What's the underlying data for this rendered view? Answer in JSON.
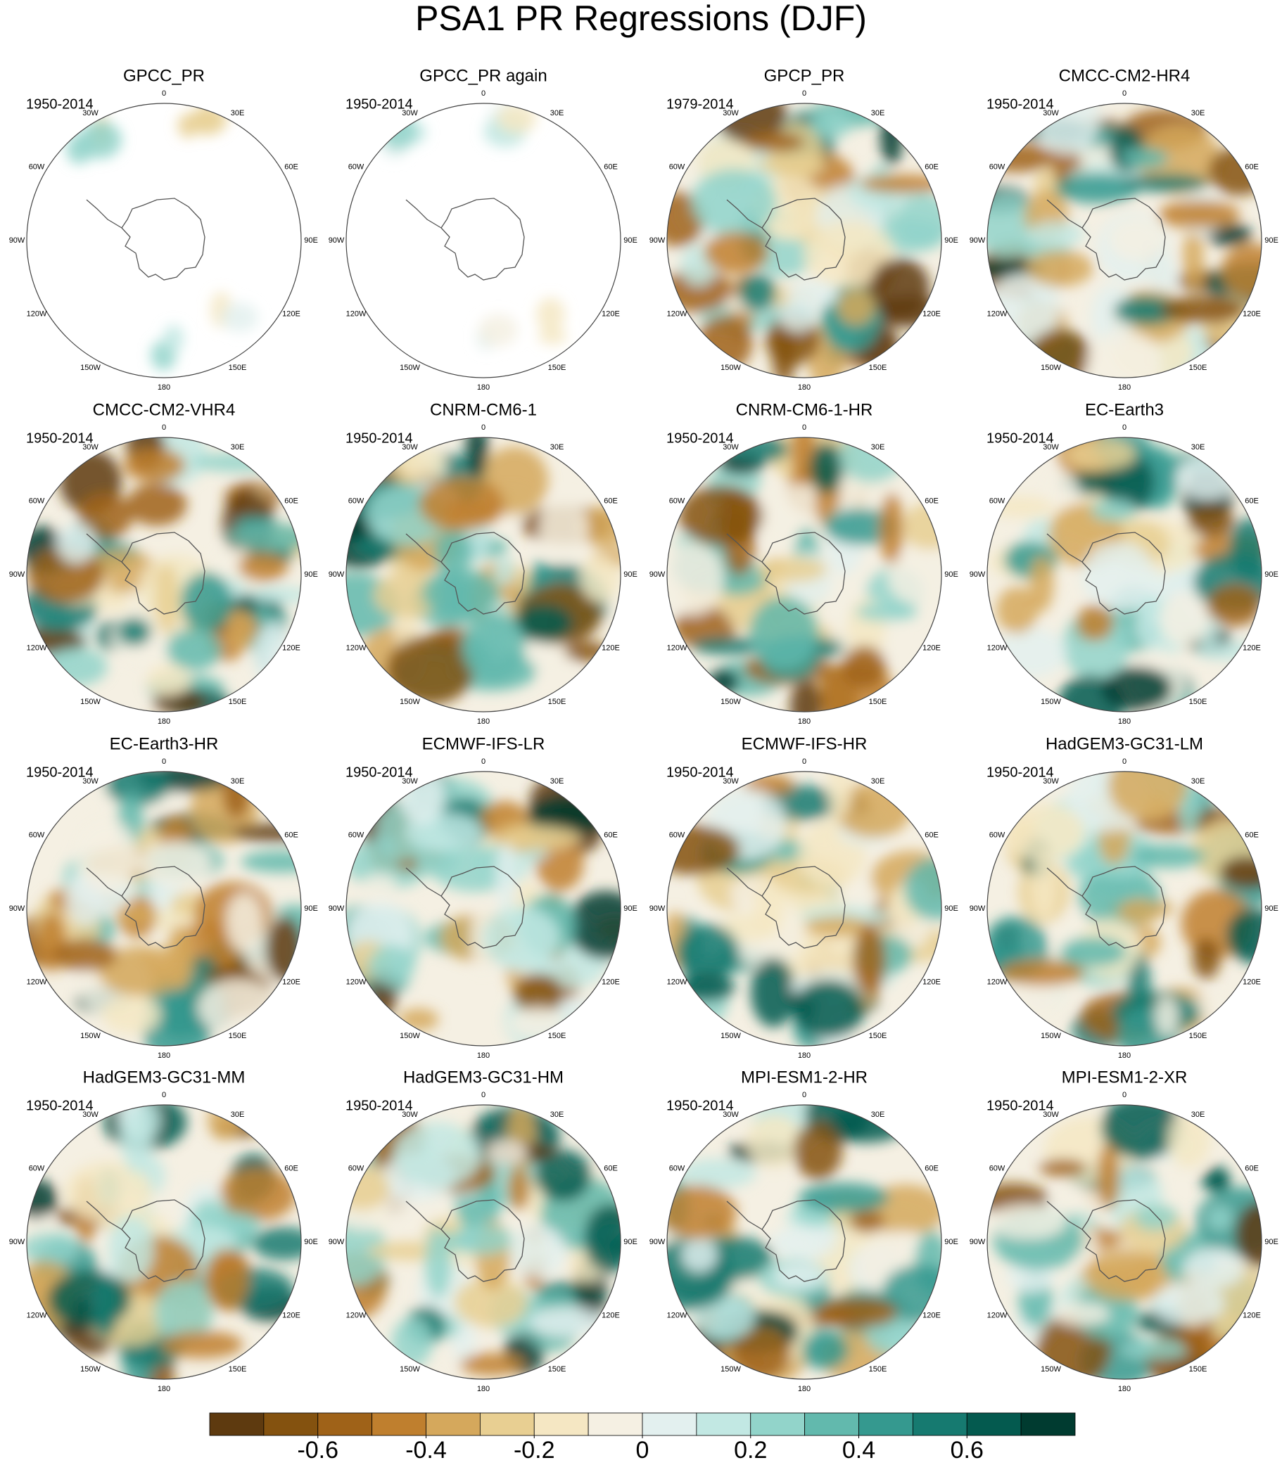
{
  "title": "PSA1 PR Regressions (DJF)",
  "panels": [
    {
      "title": "GPCC_PR",
      "period": "1950-2014"
    },
    {
      "title": "GPCC_PR again",
      "period": "1950-2014"
    },
    {
      "title": "GPCP_PR",
      "period": "1979-2014"
    },
    {
      "title": "CMCC-CM2-HR4",
      "period": "1950-2014"
    },
    {
      "title": "CMCC-CM2-VHR4",
      "period": "1950-2014"
    },
    {
      "title": "CNRM-CM6-1",
      "period": "1950-2014"
    },
    {
      "title": "CNRM-CM6-1-HR",
      "period": "1950-2014"
    },
    {
      "title": "EC-Earth3",
      "period": "1950-2014"
    },
    {
      "title": "EC-Earth3-HR",
      "period": "1950-2014"
    },
    {
      "title": "ECMWF-IFS-LR",
      "period": "1950-2014"
    },
    {
      "title": "ECMWF-IFS-HR",
      "period": "1950-2014"
    },
    {
      "title": "HadGEM3-GC31-LM",
      "period": "1950-2014"
    },
    {
      "title": "HadGEM3-GC31-MM",
      "period": "1950-2014"
    },
    {
      "title": "HadGEM3-GC31-HM",
      "period": "1950-2014"
    },
    {
      "title": "MPI-ESM1-2-HR",
      "period": "1950-2014"
    },
    {
      "title": "MPI-ESM1-2-XR",
      "period": "1950-2014"
    }
  ],
  "longitude_labels": [
    "0",
    "30E",
    "60E",
    "90E",
    "120E",
    "150E",
    "180",
    "150W",
    "120W",
    "90W",
    "60W",
    "30W"
  ],
  "colorbar": {
    "range": [
      -0.8,
      0.8
    ],
    "ticks": [
      -0.6,
      -0.4,
      -0.2,
      0,
      0.2,
      0.4,
      0.6
    ],
    "colors": [
      "#5e3a0f",
      "#84520f",
      "#9f6218",
      "#bf7f2e",
      "#d5a85c",
      "#e8cf92",
      "#f5e7c3",
      "#f5f0e3",
      "#e3f0ef",
      "#c2e8e3",
      "#92d4ca",
      "#62b9ad",
      "#35998f",
      "#167a70",
      "#045a4f",
      "#003b30"
    ]
  }
}
